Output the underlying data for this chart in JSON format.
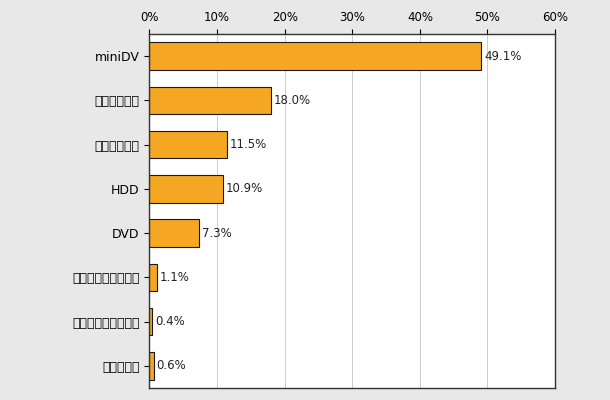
{
  "categories": [
    "miniDV",
    "ビデオテープ",
    "メモリタイプ",
    "HDD",
    "DVD",
    "ハイブリッドタイプ",
    "ブルーレイディスク",
    "分からない"
  ],
  "values": [
    49.1,
    18.0,
    11.5,
    10.9,
    7.3,
    1.1,
    0.4,
    0.6
  ],
  "labels": [
    "49.1%",
    "18.0%",
    "11.5%",
    "10.9%",
    "7.3%",
    "1.1%",
    "0.4%",
    "0.6%"
  ],
  "bar_color": "#F5A623",
  "bar_edge_color": "#1A1A1A",
  "fig_background_color": "#E8E8E8",
  "plot_background": "#FFFFFF",
  "xlim": [
    0,
    60
  ],
  "xticks": [
    0,
    10,
    20,
    30,
    40,
    50,
    60
  ],
  "xtick_labels": [
    "0%",
    "10%",
    "20%",
    "30%",
    "40%",
    "50%",
    "60%"
  ],
  "grid_color": "#CCCCCC",
  "bar_height": 0.62,
  "label_fontsize": 8.5,
  "ytick_fontsize": 9,
  "xtick_fontsize": 8.5
}
